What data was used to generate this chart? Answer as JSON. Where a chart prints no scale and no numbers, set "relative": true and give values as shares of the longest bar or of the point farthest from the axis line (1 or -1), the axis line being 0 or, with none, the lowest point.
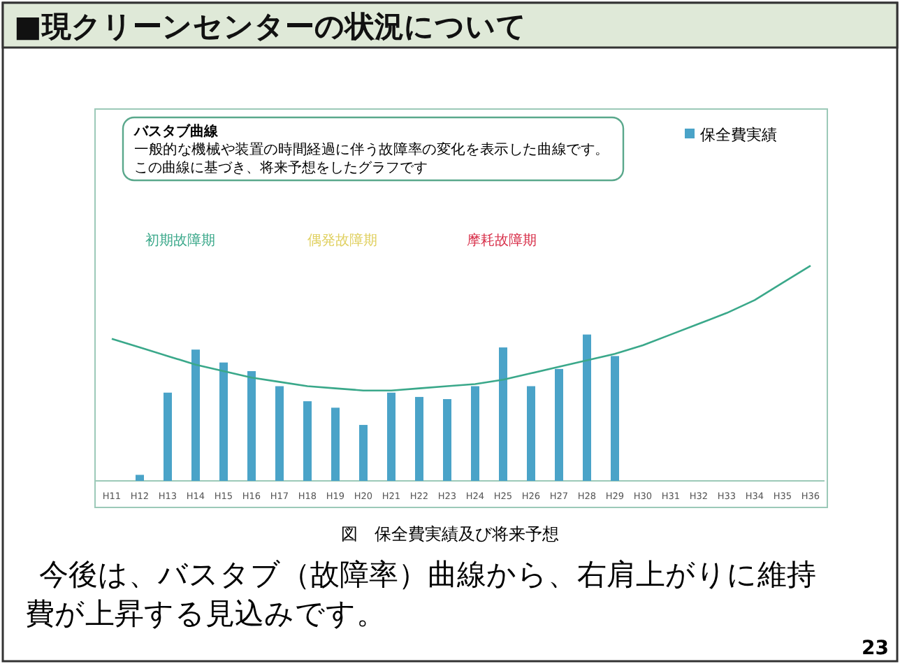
{
  "chart_data": {
    "type": "bar",
    "title": "■現クリーンセンターの状況について",
    "categories": [
      "H11",
      "H12",
      "H13",
      "H14",
      "H15",
      "H16",
      "H17",
      "H18",
      "H19",
      "H20",
      "H21",
      "H22",
      "H23",
      "H24",
      "H25",
      "H26",
      "H27",
      "H28",
      "H29",
      "H30",
      "H31",
      "H32",
      "H33",
      "H34",
      "H35",
      "H36"
    ],
    "relative": true,
    "legend": "top right",
    "series": [
      {
        "name": "保全費実績",
        "color": "#4aa3c8",
        "values": [
          null,
          0.028,
          0.41,
          0.61,
          0.55,
          0.51,
          0.44,
          0.37,
          0.34,
          0.26,
          0.41,
          0.39,
          0.38,
          0.44,
          0.62,
          0.44,
          0.52,
          0.68,
          0.58,
          null,
          null,
          null,
          null,
          null,
          null,
          null
        ]
      },
      {
        "type": "line",
        "color": "#3aa88a",
        "values": [
          0.66,
          0.62,
          0.58,
          0.54,
          0.51,
          0.48,
          0.46,
          0.44,
          0.43,
          0.42,
          0.42,
          0.43,
          0.44,
          0.45,
          0.47,
          0.5,
          0.53,
          0.56,
          0.59,
          0.63,
          0.68,
          0.73,
          0.78,
          0.84,
          0.92,
          1.0
        ]
      }
    ],
    "annotations": [
      "バスタブ曲線",
      "一般的な機械や装置の時間経過に伴う故障率の変化を表示した曲線です。",
      "この曲線に基づき、将来予想をしたグラフです",
      "初期故障期",
      "偶発故障期",
      "摩耗故障期",
      "図　保全費実績及び将来予想",
      "今後は、バスタブ（故障率）曲線から、右肩上がりに維持",
      "費が上昇する見込みです。",
      "23"
    ]
  }
}
